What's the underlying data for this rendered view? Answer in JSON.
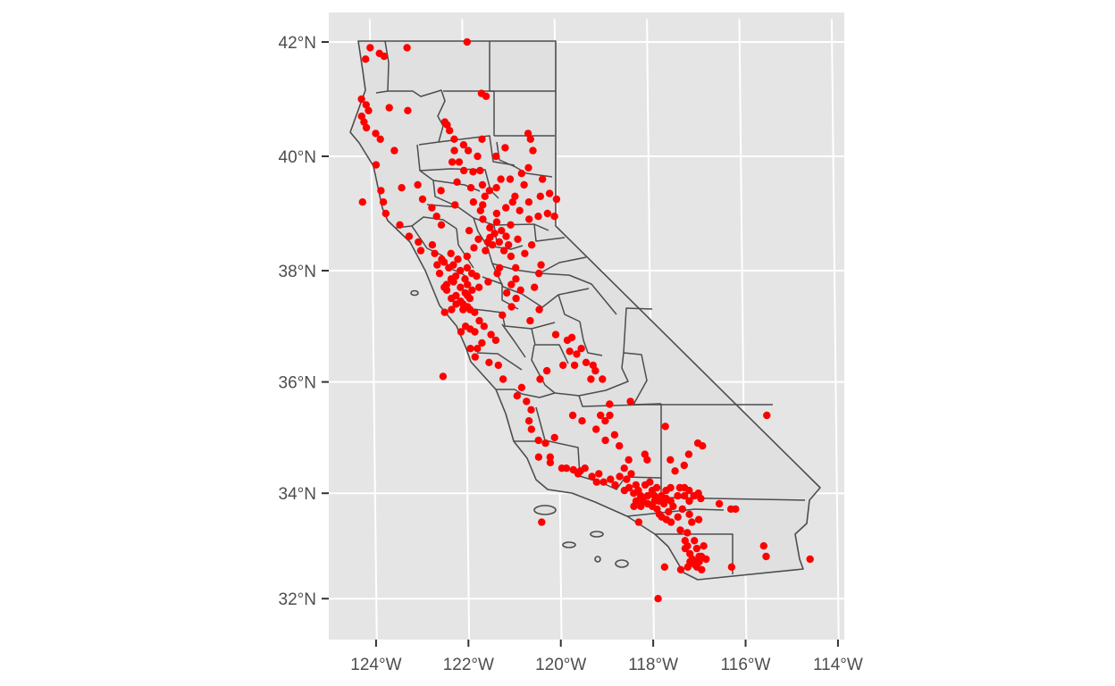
{
  "chart_data": {
    "type": "map",
    "title": "",
    "xlabel": "",
    "ylabel": "",
    "projection": "NAD83 (CRS 4269), graticule curved",
    "panel_background": "#e5e5e5",
    "grid_color": "#ffffff",
    "county_fill": "#e0e0e0",
    "county_stroke": "#4d4d4d",
    "point_color": "#ff0000",
    "xlim": [
      -124.8,
      -113.8
    ],
    "ylim": [
      32.0,
      42.0
    ],
    "lon_ticks": [
      {
        "value": -124,
        "label": "124°W"
      },
      {
        "value": -122,
        "label": "122°W"
      },
      {
        "value": -120,
        "label": "120°W"
      },
      {
        "value": -118,
        "label": "118°W"
      },
      {
        "value": -116,
        "label": "116°W"
      },
      {
        "value": -114,
        "label": "114°W"
      }
    ],
    "lat_ticks": [
      {
        "value": 42,
        "label": "42°N"
      },
      {
        "value": 40,
        "label": "40°N"
      },
      {
        "value": 38,
        "label": "38°N"
      },
      {
        "value": 36,
        "label": "36°N"
      },
      {
        "value": 34,
        "label": "34°N"
      },
      {
        "value": 32,
        "label": "32°N"
      }
    ],
    "points": [
      [
        -124.0,
        41.9
      ],
      [
        -123.8,
        41.8
      ],
      [
        -123.7,
        41.75
      ],
      [
        -124.1,
        41.7
      ],
      [
        -123.2,
        41.9
      ],
      [
        -121.9,
        42.0
      ],
      [
        -121.6,
        41.1
      ],
      [
        -121.5,
        41.05
      ],
      [
        -124.2,
        41.0
      ],
      [
        -124.1,
        40.9
      ],
      [
        -124.05,
        40.8
      ],
      [
        -124.2,
        40.7
      ],
      [
        -124.15,
        40.6
      ],
      [
        -124.1,
        40.5
      ],
      [
        -123.9,
        40.4
      ],
      [
        -123.8,
        40.3
      ],
      [
        -123.6,
        40.85
      ],
      [
        -123.2,
        40.8
      ],
      [
        -122.4,
        40.6
      ],
      [
        -122.35,
        40.55
      ],
      [
        -122.3,
        40.45
      ],
      [
        -122.2,
        40.3
      ],
      [
        -122.0,
        40.2
      ],
      [
        -121.9,
        40.1
      ],
      [
        -121.6,
        40.3
      ],
      [
        -121.3,
        40.0
      ],
      [
        -121.1,
        40.15
      ],
      [
        -120.6,
        40.4
      ],
      [
        -120.55,
        40.3
      ],
      [
        -120.5,
        40.1
      ],
      [
        -120.6,
        39.8
      ],
      [
        -120.3,
        39.6
      ],
      [
        -122.1,
        39.9
      ],
      [
        -122.0,
        39.75
      ],
      [
        -121.8,
        39.73
      ],
      [
        -121.6,
        39.5
      ],
      [
        -121.55,
        39.3
      ],
      [
        -121.8,
        39.2
      ],
      [
        -122.2,
        39.15
      ],
      [
        -122.5,
        39.4
      ],
      [
        -123.35,
        39.45
      ],
      [
        -123.8,
        39.4
      ],
      [
        -123.75,
        39.2
      ],
      [
        -123.7,
        39.0
      ],
      [
        -123.4,
        38.8
      ],
      [
        -123.2,
        38.6
      ],
      [
        -123.0,
        38.5
      ],
      [
        -122.95,
        38.35
      ],
      [
        -124.2,
        39.2
      ],
      [
        -123.9,
        39.85
      ],
      [
        -123.5,
        40.1
      ],
      [
        -123.0,
        39.5
      ],
      [
        -122.9,
        39.25
      ],
      [
        -122.7,
        39.1
      ],
      [
        -122.6,
        38.95
      ],
      [
        -122.5,
        38.8
      ],
      [
        -122.7,
        38.45
      ],
      [
        -122.65,
        38.3
      ],
      [
        -122.5,
        38.2
      ],
      [
        -122.3,
        38.3
      ],
      [
        -122.25,
        38.1
      ],
      [
        -122.1,
        38.0
      ],
      [
        -122.2,
        37.9
      ],
      [
        -122.3,
        37.85
      ],
      [
        -122.25,
        37.8
      ],
      [
        -122.4,
        37.75
      ],
      [
        -122.45,
        37.7
      ],
      [
        -122.1,
        37.7
      ],
      [
        -122.0,
        37.6
      ],
      [
        -121.9,
        37.5
      ],
      [
        -121.95,
        37.35
      ],
      [
        -122.05,
        37.3
      ],
      [
        -121.9,
        37.3
      ],
      [
        -121.8,
        37.25
      ],
      [
        -122.0,
        37.0
      ],
      [
        -121.8,
        36.9
      ],
      [
        -121.65,
        36.7
      ],
      [
        -121.9,
        36.6
      ],
      [
        -121.8,
        36.45
      ],
      [
        -121.5,
        36.35
      ],
      [
        -122.4,
        37.65
      ],
      [
        -122.2,
        37.55
      ],
      [
        -122.1,
        37.45
      ],
      [
        -122.3,
        37.5
      ],
      [
        -121.7,
        37.7
      ],
      [
        -121.5,
        37.8
      ],
      [
        -121.3,
        37.95
      ],
      [
        -121.25,
        38.05
      ],
      [
        -121.5,
        38.5
      ],
      [
        -121.45,
        38.58
      ],
      [
        -121.35,
        38.65
      ],
      [
        -121.2,
        38.7
      ],
      [
        -121.1,
        38.6
      ],
      [
        -121.0,
        38.8
      ],
      [
        -121.3,
        38.85
      ],
      [
        -121.6,
        38.9
      ],
      [
        -121.7,
        38.55
      ],
      [
        -121.8,
        38.4
      ],
      [
        -121.9,
        38.7
      ],
      [
        -121.95,
        38.25
      ],
      [
        -121.55,
        38.35
      ],
      [
        -121.15,
        38.35
      ],
      [
        -121.0,
        38.25
      ],
      [
        -120.9,
        38.05
      ],
      [
        -120.7,
        38.3
      ],
      [
        -120.55,
        38.45
      ],
      [
        -120.35,
        38.1
      ],
      [
        -120.4,
        37.95
      ],
      [
        -120.5,
        37.7
      ],
      [
        -120.8,
        37.65
      ],
      [
        -120.9,
        37.5
      ],
      [
        -121.0,
        37.35
      ],
      [
        -120.4,
        37.3
      ],
      [
        -120.6,
        37.1
      ],
      [
        -120.05,
        36.85
      ],
      [
        -119.8,
        36.75
      ],
      [
        -119.7,
        36.8
      ],
      [
        -119.6,
        36.5
      ],
      [
        -119.4,
        36.35
      ],
      [
        -119.3,
        36.05
      ],
      [
        -119.9,
        36.3
      ],
      [
        -120.25,
        36.2
      ],
      [
        -120.4,
        36.05
      ],
      [
        -120.8,
        35.9
      ],
      [
        -120.7,
        35.65
      ],
      [
        -120.65,
        35.3
      ],
      [
        -120.6,
        35.15
      ],
      [
        -120.45,
        34.95
      ],
      [
        -120.2,
        34.65
      ],
      [
        -119.85,
        34.45
      ],
      [
        -119.7,
        34.42
      ],
      [
        -119.3,
        34.3
      ],
      [
        -119.2,
        34.2
      ],
      [
        -119.05,
        34.2
      ],
      [
        -118.8,
        34.15
      ],
      [
        -118.6,
        34.05
      ],
      [
        -118.5,
        34.1
      ],
      [
        -118.4,
        34.0
      ],
      [
        -118.3,
        34.05
      ],
      [
        -118.25,
        33.95
      ],
      [
        -118.2,
        33.85
      ],
      [
        -118.1,
        33.8
      ],
      [
        -118.0,
        33.75
      ],
      [
        -117.9,
        33.7
      ],
      [
        -117.85,
        33.6
      ],
      [
        -117.8,
        33.55
      ],
      [
        -117.7,
        33.5
      ],
      [
        -117.6,
        33.45
      ],
      [
        -117.4,
        33.3
      ],
      [
        -117.3,
        33.1
      ],
      [
        -117.25,
        33.0
      ],
      [
        -117.2,
        32.85
      ],
      [
        -117.15,
        32.75
      ],
      [
        -117.1,
        32.7
      ],
      [
        -117.05,
        32.6
      ],
      [
        -117.0,
        32.7
      ],
      [
        -116.95,
        32.8
      ],
      [
        -116.9,
        33.0
      ],
      [
        -117.1,
        33.1
      ],
      [
        -117.05,
        32.95
      ],
      [
        -118.0,
        34.05
      ],
      [
        -117.9,
        34.1
      ],
      [
        -117.7,
        34.05
      ],
      [
        -117.6,
        34.1
      ],
      [
        -117.4,
        34.1
      ],
      [
        -117.3,
        34.1
      ],
      [
        -117.2,
        34.05
      ],
      [
        -117.1,
        33.95
      ],
      [
        -117.0,
        34.0
      ],
      [
        -116.95,
        33.9
      ],
      [
        -116.55,
        33.8
      ],
      [
        -116.3,
        33.7
      ],
      [
        -116.2,
        33.7
      ],
      [
        -117.2,
        33.6
      ],
      [
        -117.15,
        33.45
      ],
      [
        -117.35,
        33.7
      ],
      [
        -117.5,
        34.4
      ],
      [
        -117.3,
        34.5
      ],
      [
        -117.2,
        34.7
      ],
      [
        -117.0,
        34.9
      ],
      [
        -116.9,
        34.85
      ],
      [
        -117.6,
        34.6
      ],
      [
        -118.1,
        34.6
      ],
      [
        -118.15,
        34.7
      ],
      [
        -118.5,
        34.6
      ],
      [
        -118.45,
        34.35
      ],
      [
        -118.7,
        34.85
      ],
      [
        -118.8,
        35.05
      ],
      [
        -119.0,
        35.3
      ],
      [
        -119.1,
        35.4
      ],
      [
        -118.9,
        35.6
      ],
      [
        -118.45,
        35.65
      ],
      [
        -117.7,
        35.2
      ],
      [
        -115.5,
        35.4
      ],
      [
        -115.6,
        33.0
      ],
      [
        -115.55,
        32.8
      ],
      [
        -114.6,
        32.75
      ],
      [
        -116.3,
        32.6
      ],
      [
        -116.95,
        32.55
      ],
      [
        -117.0,
        33.5
      ],
      [
        -119.0,
        34.95
      ],
      [
        -119.6,
        34.35
      ],
      [
        -120.45,
        34.65
      ],
      [
        -120.4,
        33.45
      ],
      [
        -117.9,
        32.0
      ],
      [
        -118.3,
        33.45
      ],
      [
        -117.75,
        32.6
      ],
      [
        -117.4,
        32.55
      ],
      [
        -122.5,
        36.1
      ],
      [
        -122.1,
        36.9
      ],
      [
        -121.9,
        36.95
      ],
      [
        -121.75,
        36.6
      ],
      [
        -121.3,
        36.3
      ],
      [
        -121.2,
        36.05
      ],
      [
        -120.9,
        35.75
      ],
      [
        -120.6,
        35.5
      ],
      [
        -122.35,
        38.05
      ],
      [
        -122.55,
        37.95
      ],
      [
        -122.6,
        38.1
      ],
      [
        -122.45,
        38.15
      ],
      [
        -122.15,
        38.2
      ],
      [
        -121.95,
        38.05
      ],
      [
        -121.85,
        37.95
      ],
      [
        -121.75,
        37.9
      ],
      [
        -122.0,
        37.85
      ],
      [
        -121.95,
        37.75
      ],
      [
        -121.85,
        37.65
      ],
      [
        -121.95,
        37.55
      ],
      [
        -122.05,
        37.4
      ],
      [
        -122.2,
        37.4
      ],
      [
        -122.3,
        37.3
      ],
      [
        -122.45,
        37.25
      ],
      [
        -121.7,
        37.1
      ],
      [
        -121.6,
        37.0
      ],
      [
        -121.45,
        36.85
      ],
      [
        -121.35,
        36.75
      ],
      [
        -121.2,
        37.2
      ],
      [
        -121.1,
        37.6
      ],
      [
        -121.0,
        37.75
      ],
      [
        -120.9,
        37.85
      ],
      [
        -121.45,
        38.75
      ],
      [
        -121.3,
        39.0
      ],
      [
        -121.1,
        39.1
      ],
      [
        -120.95,
        39.2
      ],
      [
        -120.9,
        39.3
      ],
      [
        -120.8,
        39.05
      ],
      [
        -120.6,
        38.9
      ],
      [
        -120.4,
        38.95
      ],
      [
        -120.2,
        39.0
      ],
      [
        -120.05,
        38.95
      ],
      [
        -120.0,
        39.25
      ],
      [
        -120.15,
        39.35
      ],
      [
        -120.35,
        39.3
      ],
      [
        -120.6,
        39.2
      ],
      [
        -120.7,
        39.5
      ],
      [
        -120.75,
        39.7
      ],
      [
        -121.0,
        39.6
      ],
      [
        -121.2,
        39.6
      ],
      [
        -121.3,
        39.45
      ],
      [
        -121.45,
        39.4
      ],
      [
        -121.65,
        39.75
      ],
      [
        -121.7,
        40.0
      ],
      [
        -122.2,
        40.1
      ],
      [
        -122.25,
        39.9
      ],
      [
        -122.15,
        39.55
      ],
      [
        -121.85,
        39.45
      ],
      [
        -121.6,
        39.15
      ],
      [
        -121.65,
        39.05
      ],
      [
        -121.4,
        38.45
      ],
      [
        -121.25,
        38.5
      ],
      [
        -121.05,
        38.45
      ],
      [
        -120.85,
        38.55
      ],
      [
        -118.35,
        34.15
      ],
      [
        -118.55,
        34.25
      ],
      [
        -118.7,
        34.3
      ],
      [
        -118.9,
        34.25
      ],
      [
        -119.15,
        34.35
      ],
      [
        -118.15,
        34.15
      ],
      [
        -118.05,
        34.2
      ],
      [
        -117.95,
        33.95
      ],
      [
        -117.85,
        33.85
      ],
      [
        -117.75,
        33.8
      ],
      [
        -117.65,
        33.65
      ],
      [
        -117.55,
        33.75
      ],
      [
        -117.45,
        33.95
      ],
      [
        -117.3,
        33.95
      ],
      [
        -117.2,
        33.85
      ],
      [
        -117.45,
        33.55
      ],
      [
        -117.25,
        33.25
      ],
      [
        -117.3,
        32.95
      ],
      [
        -117.2,
        32.7
      ],
      [
        -117.0,
        32.8
      ],
      [
        -116.85,
        32.75
      ],
      [
        -117.25,
        32.6
      ],
      [
        -117.1,
        32.65
      ],
      [
        -118.6,
        34.45
      ],
      [
        -118.35,
        33.85
      ],
      [
        -118.4,
        33.75
      ],
      [
        -118.25,
        33.75
      ],
      [
        -118.1,
        33.95
      ],
      [
        -117.95,
        33.85
      ],
      [
        -117.8,
        33.95
      ],
      [
        -117.7,
        33.9
      ],
      [
        -117.6,
        33.85
      ],
      [
        -119.75,
        36.55
      ],
      [
        -119.65,
        36.3
      ],
      [
        -119.5,
        36.6
      ],
      [
        -119.25,
        36.3
      ],
      [
        -119.2,
        36.2
      ],
      [
        -119.05,
        36.05
      ],
      [
        -118.9,
        35.4
      ],
      [
        -119.2,
        35.15
      ],
      [
        -119.5,
        35.3
      ],
      [
        -119.7,
        35.4
      ],
      [
        -120.1,
        35.0
      ],
      [
        -120.3,
        34.9
      ],
      [
        -120.2,
        34.55
      ],
      [
        -119.95,
        34.45
      ],
      [
        -119.55,
        34.4
      ],
      [
        -119.45,
        34.45
      ]
    ]
  }
}
